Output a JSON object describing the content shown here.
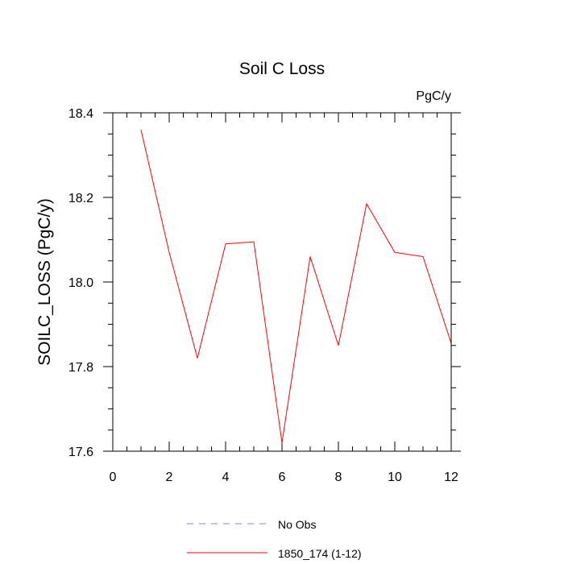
{
  "chart_data": {
    "type": "line",
    "title": "Soil C Loss",
    "units_label": "PgC/y",
    "xlabel": "",
    "ylabel": "SOILC_LOSS  (PgC/y)",
    "xlim": [
      0,
      12
    ],
    "ylim": [
      17.6,
      18.4
    ],
    "x_ticks": [
      0,
      2,
      4,
      6,
      8,
      10,
      12
    ],
    "y_ticks": [
      17.6,
      17.8,
      18.0,
      18.2,
      18.4
    ],
    "x_tick_labels": [
      "0",
      "2",
      "4",
      "6",
      "8",
      "10",
      "12"
    ],
    "y_tick_labels": [
      "17.6",
      "17.8",
      "18.0",
      "18.2",
      "18.4"
    ],
    "grid": false,
    "legend_position": "bottom",
    "series": [
      {
        "name": "No Obs",
        "color": "#8080ff",
        "dashed": true,
        "x": [],
        "values": []
      },
      {
        "name": "1850_174 (1-12)",
        "color": "#ff0000",
        "dashed": false,
        "x": [
          1,
          2,
          3,
          4,
          5,
          6,
          7,
          8,
          9,
          10,
          11,
          12
        ],
        "values": [
          18.36,
          18.07,
          17.82,
          18.09,
          18.095,
          17.62,
          18.06,
          17.85,
          18.185,
          18.07,
          18.06,
          17.855
        ]
      }
    ]
  }
}
